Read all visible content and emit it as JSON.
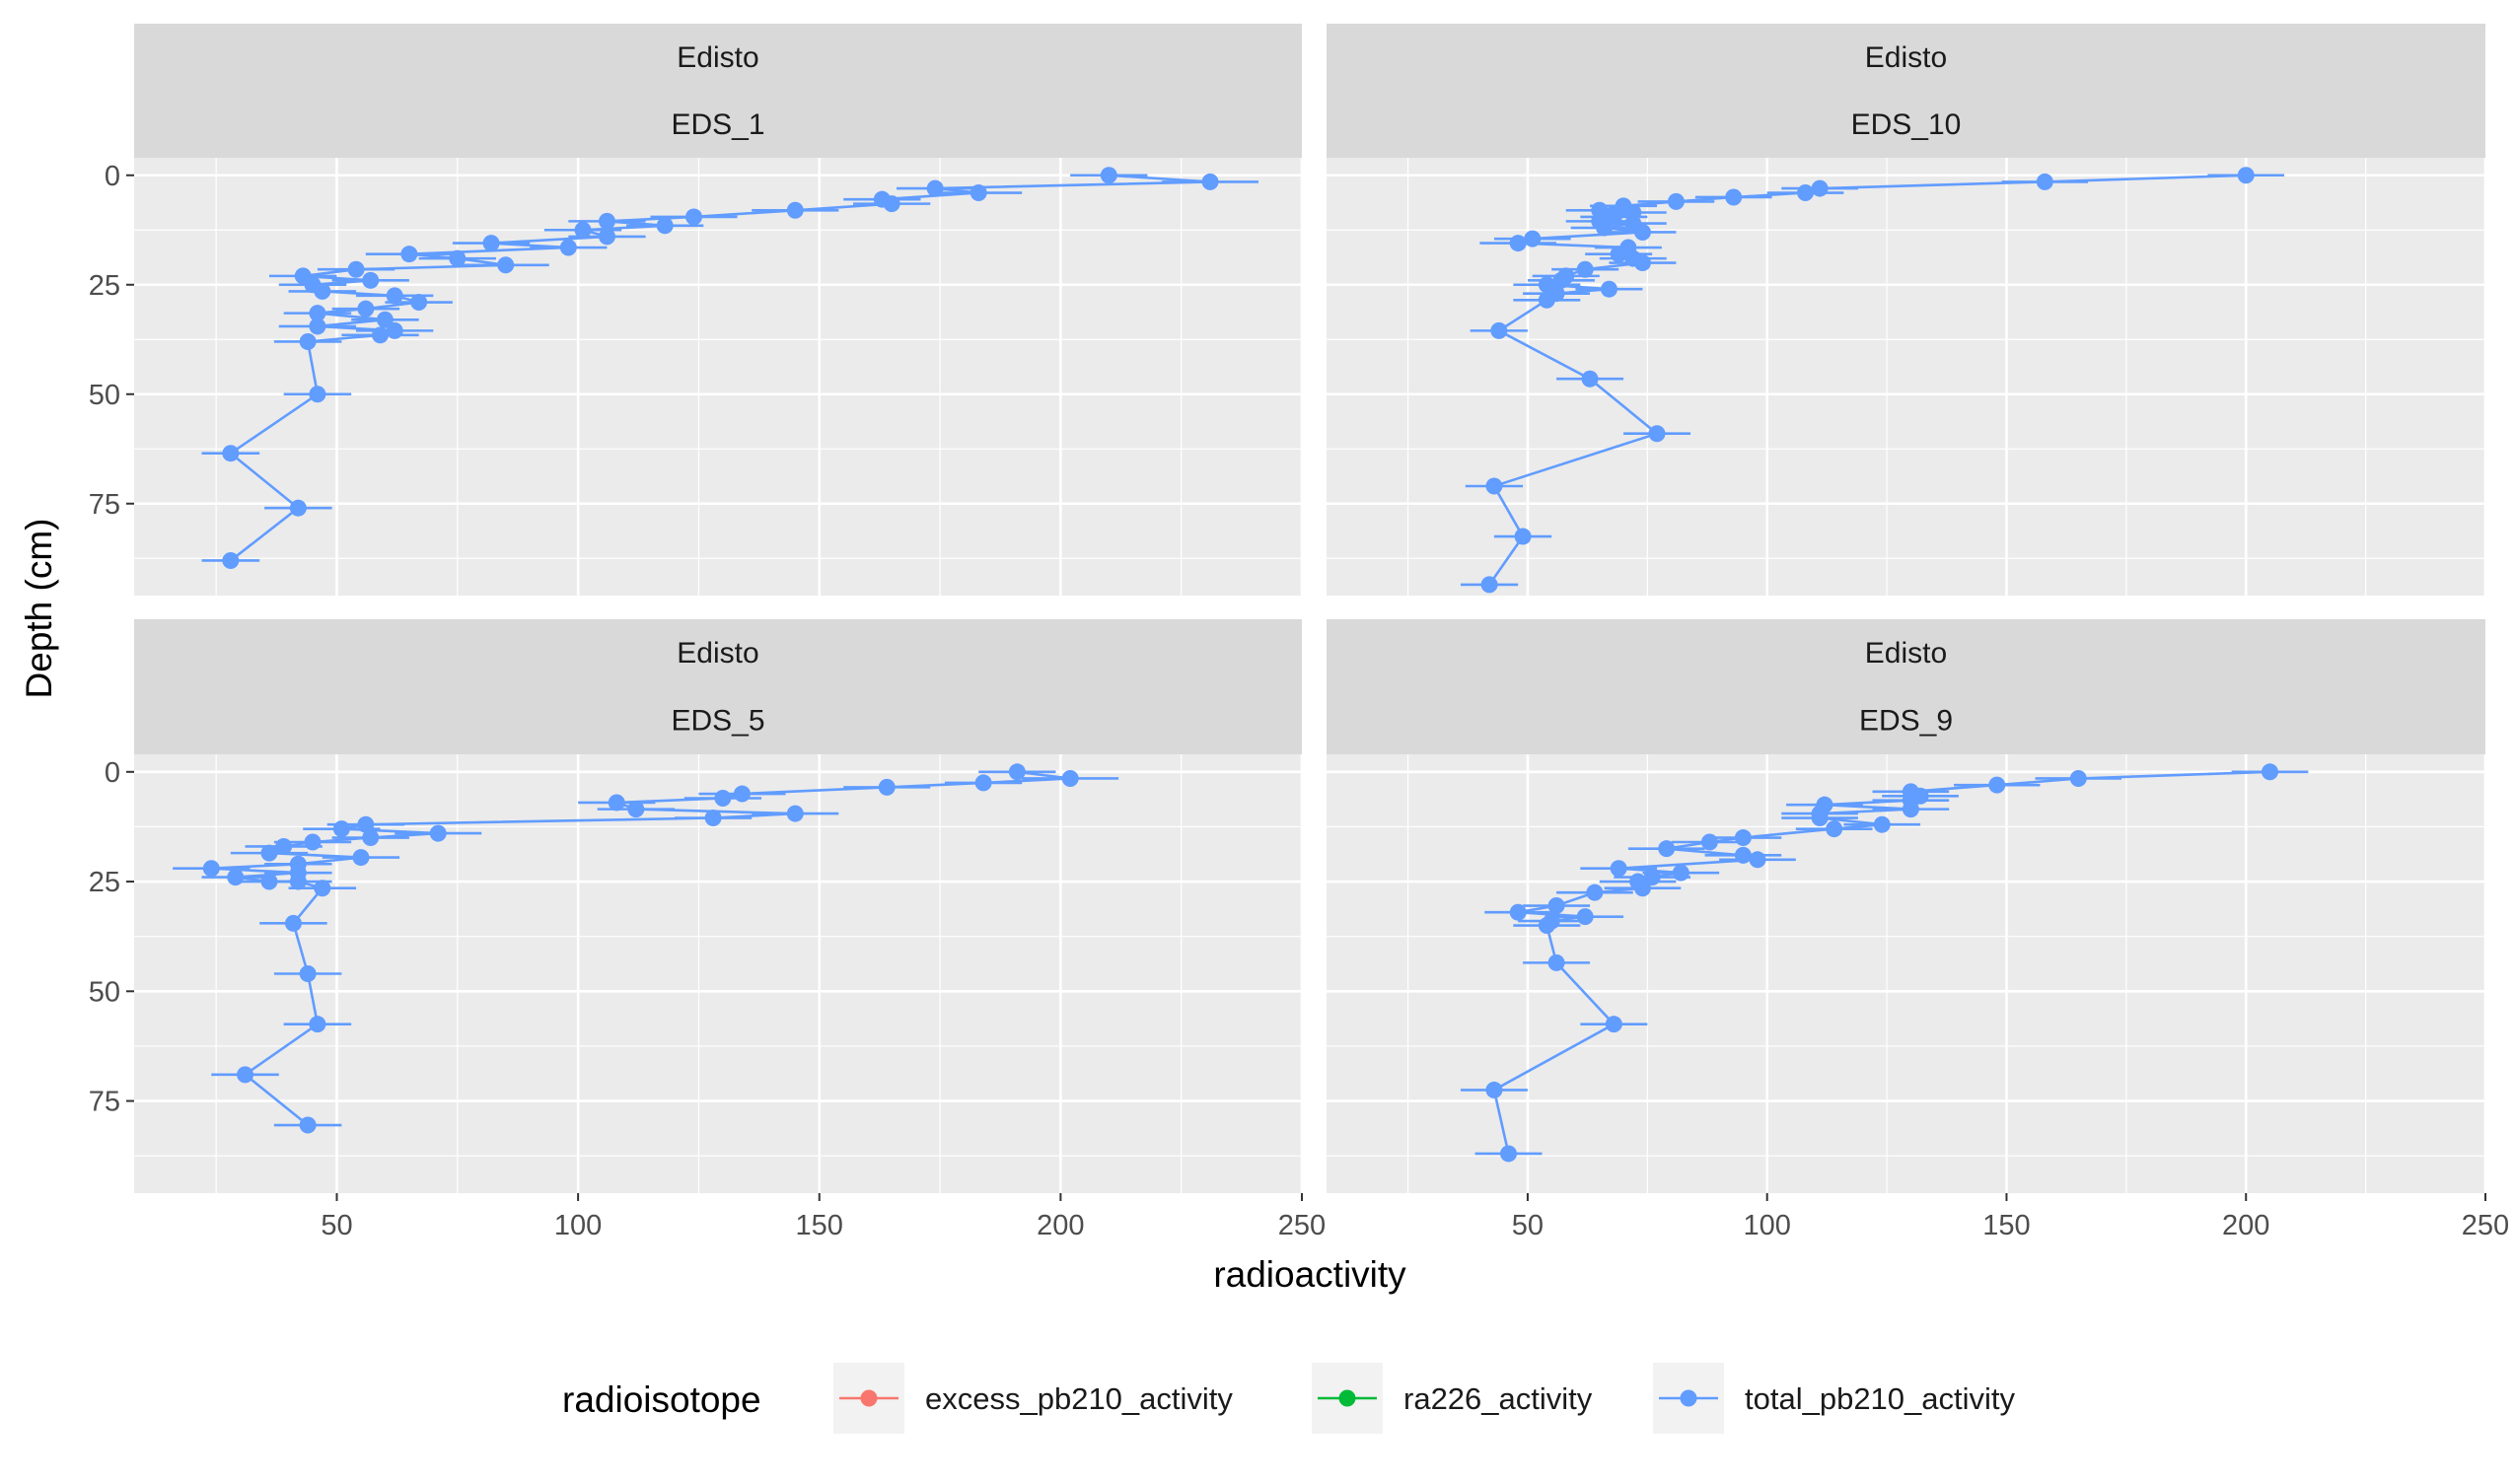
{
  "chart_data": {
    "type": "scatter",
    "xlabel": "radioactivity",
    "ylabel": "Depth (cm)",
    "x_ticks": [
      50,
      100,
      150,
      200,
      250
    ],
    "y_ticks": [
      0,
      25,
      50,
      75
    ],
    "xlim": [
      8,
      250
    ],
    "ylim": [
      96,
      -4
    ],
    "y_reversed": true,
    "grid": true,
    "panel_background": "#EBEBEB",
    "strip_background": "#D9D9D9",
    "legend": {
      "title": "radioisotope",
      "position": "bottom",
      "entries": [
        {
          "label": "excess_pb210_activity",
          "color": "#F8766D"
        },
        {
          "label": "ra226_activity",
          "color": "#00BA38"
        },
        {
          "label": "total_pb210_activity",
          "color": "#619CFF"
        }
      ]
    },
    "panels": [
      {
        "site": "Edisto",
        "core": "EDS_1",
        "series": "total_pb210_activity",
        "points": [
          {
            "x": 210,
            "y": 0,
            "err": 8
          },
          {
            "x": 231,
            "y": 1.5,
            "err": 10
          },
          {
            "x": 174,
            "y": 3,
            "err": 8
          },
          {
            "x": 183,
            "y": 4,
            "err": 9
          },
          {
            "x": 163,
            "y": 5.5,
            "err": 8
          },
          {
            "x": 165,
            "y": 6.5,
            "err": 8
          },
          {
            "x": 145,
            "y": 8,
            "err": 9
          },
          {
            "x": 124,
            "y": 9.5,
            "err": 9
          },
          {
            "x": 106,
            "y": 10.5,
            "err": 8
          },
          {
            "x": 118,
            "y": 11.5,
            "err": 8
          },
          {
            "x": 101,
            "y": 12.5,
            "err": 8
          },
          {
            "x": 106,
            "y": 14,
            "err": 8
          },
          {
            "x": 82,
            "y": 15.5,
            "err": 8
          },
          {
            "x": 98,
            "y": 16.5,
            "err": 8
          },
          {
            "x": 65,
            "y": 18,
            "err": 9
          },
          {
            "x": 75,
            "y": 19,
            "err": 8
          },
          {
            "x": 85,
            "y": 20.5,
            "err": 9
          },
          {
            "x": 54,
            "y": 21.5,
            "err": 8
          },
          {
            "x": 43,
            "y": 23,
            "err": 7
          },
          {
            "x": 57,
            "y": 24,
            "err": 8
          },
          {
            "x": 45,
            "y": 25,
            "err": 7
          },
          {
            "x": 47,
            "y": 26.5,
            "err": 7
          },
          {
            "x": 62,
            "y": 27.5,
            "err": 8
          },
          {
            "x": 67,
            "y": 29,
            "err": 7
          },
          {
            "x": 56,
            "y": 30.5,
            "err": 7
          },
          {
            "x": 46,
            "y": 31.5,
            "err": 7
          },
          {
            "x": 60,
            "y": 33,
            "err": 7
          },
          {
            "x": 46,
            "y": 34.5,
            "err": 8
          },
          {
            "x": 62,
            "y": 35.5,
            "err": 8
          },
          {
            "x": 59,
            "y": 36.5,
            "err": 8
          },
          {
            "x": 44,
            "y": 38,
            "err": 7
          },
          {
            "x": 46,
            "y": 50,
            "err": 7
          },
          {
            "x": 28,
            "y": 63.5,
            "err": 6
          },
          {
            "x": 42,
            "y": 76,
            "err": 7
          },
          {
            "x": 28,
            "y": 88,
            "err": 6
          }
        ]
      },
      {
        "site": "Edisto",
        "core": "EDS_10",
        "series": "total_pb210_activity",
        "points": [
          {
            "x": 200,
            "y": 0,
            "err": 8
          },
          {
            "x": 158,
            "y": 1.5,
            "err": 9
          },
          {
            "x": 111,
            "y": 3,
            "err": 8
          },
          {
            "x": 108,
            "y": 4,
            "err": 8
          },
          {
            "x": 93,
            "y": 5,
            "err": 8
          },
          {
            "x": 81,
            "y": 6,
            "err": 8
          },
          {
            "x": 70,
            "y": 7,
            "err": 7
          },
          {
            "x": 65,
            "y": 8,
            "err": 7
          },
          {
            "x": 72,
            "y": 8.5,
            "err": 7
          },
          {
            "x": 68,
            "y": 9.5,
            "err": 7
          },
          {
            "x": 65,
            "y": 10.5,
            "err": 7
          },
          {
            "x": 72,
            "y": 11,
            "err": 7
          },
          {
            "x": 66,
            "y": 12,
            "err": 7
          },
          {
            "x": 74,
            "y": 13,
            "err": 7
          },
          {
            "x": 51,
            "y": 14.5,
            "err": 8
          },
          {
            "x": 48,
            "y": 15.5,
            "err": 8
          },
          {
            "x": 71,
            "y": 16.5,
            "err": 7
          },
          {
            "x": 69,
            "y": 18,
            "err": 7
          },
          {
            "x": 72,
            "y": 19,
            "err": 7
          },
          {
            "x": 74,
            "y": 20,
            "err": 7
          },
          {
            "x": 62,
            "y": 21.5,
            "err": 7
          },
          {
            "x": 58,
            "y": 23,
            "err": 7
          },
          {
            "x": 57,
            "y": 24,
            "err": 7
          },
          {
            "x": 54,
            "y": 25,
            "err": 7
          },
          {
            "x": 67,
            "y": 26,
            "err": 7
          },
          {
            "x": 56,
            "y": 27,
            "err": 7
          },
          {
            "x": 54,
            "y": 28.5,
            "err": 7
          },
          {
            "x": 44,
            "y": 35.5,
            "err": 6
          },
          {
            "x": 63,
            "y": 46.5,
            "err": 7
          },
          {
            "x": 77,
            "y": 59,
            "err": 7
          },
          {
            "x": 43,
            "y": 71,
            "err": 6
          },
          {
            "x": 49,
            "y": 82.5,
            "err": 6
          },
          {
            "x": 42,
            "y": 93.5,
            "err": 6
          }
        ]
      },
      {
        "site": "Edisto",
        "core": "EDS_5",
        "series": "total_pb210_activity",
        "points": [
          {
            "x": 191,
            "y": 0,
            "err": 8
          },
          {
            "x": 202,
            "y": 1.5,
            "err": 10
          },
          {
            "x": 184,
            "y": 2.5,
            "err": 8
          },
          {
            "x": 164,
            "y": 3.5,
            "err": 9
          },
          {
            "x": 134,
            "y": 5,
            "err": 9
          },
          {
            "x": 130,
            "y": 6,
            "err": 8
          },
          {
            "x": 108,
            "y": 7,
            "err": 8
          },
          {
            "x": 112,
            "y": 8.5,
            "err": 8
          },
          {
            "x": 145,
            "y": 9.5,
            "err": 9
          },
          {
            "x": 128,
            "y": 10.5,
            "err": 8
          },
          {
            "x": 56,
            "y": 12,
            "err": 8
          },
          {
            "x": 51,
            "y": 13,
            "err": 8
          },
          {
            "x": 71,
            "y": 14,
            "err": 9
          },
          {
            "x": 57,
            "y": 15,
            "err": 8
          },
          {
            "x": 45,
            "y": 16,
            "err": 8
          },
          {
            "x": 39,
            "y": 17,
            "err": 8
          },
          {
            "x": 36,
            "y": 18.5,
            "err": 8
          },
          {
            "x": 55,
            "y": 19.5,
            "err": 8
          },
          {
            "x": 42,
            "y": 21,
            "err": 7
          },
          {
            "x": 24,
            "y": 22,
            "err": 8
          },
          {
            "x": 42,
            "y": 23,
            "err": 7
          },
          {
            "x": 29,
            "y": 24,
            "err": 7
          },
          {
            "x": 36,
            "y": 25,
            "err": 7
          },
          {
            "x": 42,
            "y": 25,
            "err": 7
          },
          {
            "x": 47,
            "y": 26.5,
            "err": 7
          },
          {
            "x": 41,
            "y": 34.5,
            "err": 7
          },
          {
            "x": 44,
            "y": 46,
            "err": 7
          },
          {
            "x": 46,
            "y": 57.5,
            "err": 7
          },
          {
            "x": 31,
            "y": 69,
            "err": 7
          },
          {
            "x": 44,
            "y": 80.5,
            "err": 7
          }
        ]
      },
      {
        "site": "Edisto",
        "core": "EDS_9",
        "series": "total_pb210_activity",
        "points": [
          {
            "x": 205,
            "y": 0,
            "err": 8
          },
          {
            "x": 165,
            "y": 1.5,
            "err": 9
          },
          {
            "x": 148,
            "y": 3,
            "err": 9
          },
          {
            "x": 130,
            "y": 4.5,
            "err": 8
          },
          {
            "x": 132,
            "y": 5.5,
            "err": 8
          },
          {
            "x": 130,
            "y": 6.5,
            "err": 8
          },
          {
            "x": 112,
            "y": 7.5,
            "err": 8
          },
          {
            "x": 130,
            "y": 8.5,
            "err": 8
          },
          {
            "x": 111,
            "y": 9.5,
            "err": 8
          },
          {
            "x": 111,
            "y": 10.5,
            "err": 8
          },
          {
            "x": 124,
            "y": 12,
            "err": 8
          },
          {
            "x": 114,
            "y": 13,
            "err": 8
          },
          {
            "x": 95,
            "y": 15,
            "err": 8
          },
          {
            "x": 88,
            "y": 16,
            "err": 8
          },
          {
            "x": 79,
            "y": 17.5,
            "err": 8
          },
          {
            "x": 95,
            "y": 19,
            "err": 8
          },
          {
            "x": 98,
            "y": 20,
            "err": 8
          },
          {
            "x": 69,
            "y": 22,
            "err": 8
          },
          {
            "x": 82,
            "y": 23,
            "err": 8
          },
          {
            "x": 76,
            "y": 24,
            "err": 8
          },
          {
            "x": 73,
            "y": 25,
            "err": 8
          },
          {
            "x": 74,
            "y": 26.5,
            "err": 8
          },
          {
            "x": 64,
            "y": 27.5,
            "err": 8
          },
          {
            "x": 56,
            "y": 30.5,
            "err": 7
          },
          {
            "x": 48,
            "y": 32,
            "err": 7
          },
          {
            "x": 62,
            "y": 33,
            "err": 8
          },
          {
            "x": 55,
            "y": 34,
            "err": 7
          },
          {
            "x": 54,
            "y": 35,
            "err": 7
          },
          {
            "x": 56,
            "y": 43.5,
            "err": 7
          },
          {
            "x": 68,
            "y": 57.5,
            "err": 7
          },
          {
            "x": 43,
            "y": 72.5,
            "err": 7
          },
          {
            "x": 46,
            "y": 87,
            "err": 7
          }
        ]
      }
    ]
  }
}
